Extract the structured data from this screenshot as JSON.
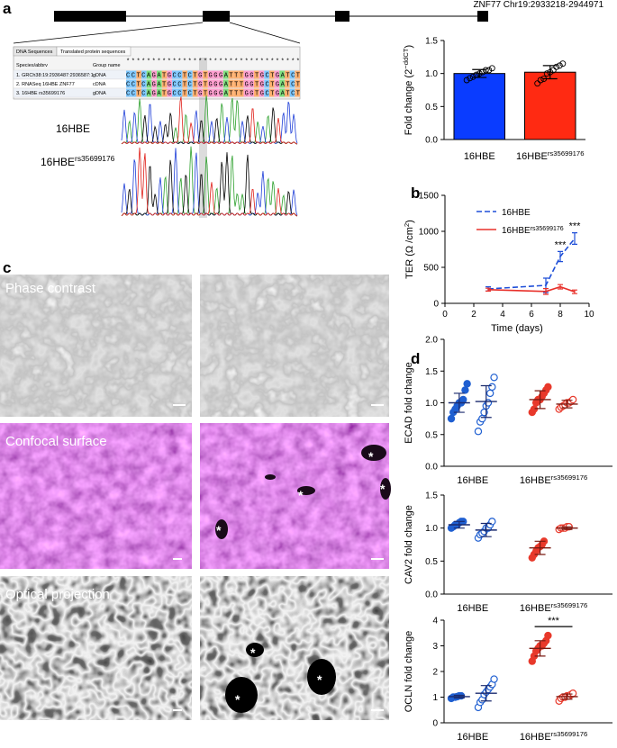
{
  "labels": {
    "a": "a",
    "b": "b",
    "c": "c",
    "d": "d"
  },
  "gene": {
    "label": "ZNF77 Chr19:2933218-2944971"
  },
  "alignment": {
    "tabs": [
      "DNA Sequences",
      "Translated protein sequences"
    ],
    "columns": [
      "Species/abbrv",
      "Group name"
    ],
    "consensus": "**********************************",
    "rows": [
      {
        "name": "1. GRCh38:19:2936487:2936587:1",
        "group": "gDNA",
        "sequence": "CCTCAGATGCCTCTGTGGGATTTGGTGCTGATCT"
      },
      {
        "name": "2. RNASeq 16HBE ZNF77",
        "group": "cDNA",
        "sequence": "CCTCAGATGCCTCTGTGGGATTTGGTGCTGATCT"
      },
      {
        "name": "3. 16HBE rs35699176",
        "group": "gDNA",
        "sequence": "CCTCAGATGCCTCTGTGGGATTTGGTGCTGATCT"
      }
    ]
  },
  "chromatograms": [
    [
      {
        "text": "16HBE"
      }
    ],
    [
      {
        "text": "16HBE"
      },
      {
        "sup": "rs35699176"
      }
    ]
  ],
  "micrographs": {
    "rows": [
      {
        "label": "Phase contrast",
        "asterisks": []
      },
      {
        "label": "Confocal surface",
        "asterisks": [
          "*",
          "*",
          "*",
          "*"
        ]
      },
      {
        "label": "Optical projection",
        "asterisks": [
          "*",
          "*",
          "*"
        ]
      }
    ]
  },
  "chart_data": [
    {
      "type": "bar",
      "ylabel": [
        {
          "text": "Fold change (2"
        },
        {
          "sup": "−ddCT"
        },
        {
          "text": ")"
        }
      ],
      "categories": [
        [
          {
            "text": "16HBE"
          }
        ],
        [
          {
            "text": "16HBE"
          },
          {
            "sup": "rs35699176"
          }
        ]
      ],
      "values": [
        1.0,
        1.02
      ],
      "errors": [
        0.06,
        0.1
      ],
      "colors": [
        "#0a3cff",
        "#ff2a12"
      ],
      "points": [
        [
          0.9,
          0.93,
          0.95,
          0.98,
          1.0,
          1.02,
          1.05,
          1.05,
          1.08
        ],
        [
          0.85,
          0.9,
          0.92,
          1.0,
          1.02,
          1.05,
          1.1,
          1.12,
          1.15
        ]
      ],
      "ylim": [
        0,
        1.5
      ],
      "yticks": [
        {
          "value": 0,
          "label": "0.0"
        },
        0.5,
        {
          "value": 1,
          "label": "1.0"
        },
        1.5
      ]
    },
    {
      "type": "line",
      "ylabel": [
        {
          "text": "TER (Ω /cm"
        },
        {
          "sup": "2"
        },
        {
          "text": ")"
        }
      ],
      "xlabel": "Time (days)",
      "x": [
        3,
        7,
        8,
        9
      ],
      "series": [
        {
          "name": [
            {
              "text": "16HBE"
            }
          ],
          "color": "#1f4fd8",
          "dashed": true,
          "values": [
            200,
            250,
            650,
            900
          ],
          "errors": [
            30,
            100,
            70,
            80
          ],
          "significance": [
            null,
            null,
            "***",
            "***"
          ]
        },
        {
          "name": [
            {
              "text": "16HBE"
            },
            {
              "sup": "rs35699176"
            }
          ],
          "color": "#e8302a",
          "dashed": false,
          "values": [
            190,
            165,
            230,
            160
          ],
          "errors": [
            20,
            40,
            30,
            25
          ]
        }
      ],
      "xlim": [
        0,
        10
      ],
      "xticks": [
        0,
        2,
        4,
        6,
        8,
        10
      ],
      "ylim": [
        0,
        1500
      ],
      "yticks": [
        0,
        500,
        1000,
        1500
      ]
    },
    {
      "type": "dot",
      "ylabel": [
        {
          "text": "ECAD fold change"
        }
      ],
      "categories": [
        [
          {
            "text": "16HBE"
          }
        ],
        [
          {
            "text": "16HBE"
          },
          {
            "sup": "rs35699176"
          }
        ]
      ],
      "groups": [
        {
          "color": "#1f5fd1",
          "filled": true,
          "points": [
            0.75,
            0.85,
            0.9,
            0.95,
            1.0,
            1.0,
            1.05,
            1.2,
            1.3
          ],
          "mean": 1.0,
          "sd": 0.15
        },
        {
          "color": "#1f5fd1",
          "filled": false,
          "points": [
            0.55,
            0.7,
            0.75,
            0.85,
            0.95,
            1.0,
            1.15,
            1.25,
            1.4
          ],
          "mean": 1.02,
          "sd": 0.25
        },
        {
          "color": "#e8392b",
          "filled": true,
          "points": [
            0.85,
            0.9,
            1.0,
            1.05,
            1.05,
            1.1,
            1.15,
            1.2,
            1.25
          ],
          "mean": 1.05,
          "sd": 0.14
        },
        {
          "color": "#e8392b",
          "filled": false,
          "points": [
            0.9,
            0.93,
            0.95,
            0.97,
            1.0,
            1.0,
            1.02,
            1.05
          ],
          "mean": 0.98,
          "sd": 0.06
        }
      ],
      "ylim": [
        0,
        2
      ],
      "yticks": [
        {
          "value": 0,
          "label": "0.0"
        },
        0.5,
        {
          "value": 1,
          "label": "1.0"
        },
        1.5,
        {
          "value": 2,
          "label": "2.0"
        }
      ]
    },
    {
      "type": "dot",
      "ylabel": [
        {
          "text": "CAV2 fold change"
        }
      ],
      "categories": [
        [
          {
            "text": "16HBE"
          }
        ],
        [
          {
            "text": "16HBE"
          },
          {
            "sup": "rs35699176"
          }
        ]
      ],
      "groups": [
        {
          "color": "#1f5fd1",
          "filled": true,
          "points": [
            1.0,
            1.02,
            1.05,
            1.05,
            1.08,
            1.1,
            1.1
          ],
          "mean": 1.05,
          "sd": 0.05
        },
        {
          "color": "#1f5fd1",
          "filled": false,
          "points": [
            0.85,
            0.9,
            0.92,
            0.95,
            1.0,
            1.0,
            1.05,
            1.1
          ],
          "mean": 0.97,
          "sd": 0.1
        },
        {
          "color": "#e8392b",
          "filled": true,
          "points": [
            0.55,
            0.6,
            0.65,
            0.7,
            0.72,
            0.75,
            0.8
          ],
          "mean": 0.7,
          "sd": 0.1
        },
        {
          "color": "#e8392b",
          "filled": false,
          "points": [
            0.98,
            1.0,
            1.0,
            1.0,
            1.02,
            1.02
          ],
          "mean": 1.0,
          "sd": 0.02
        }
      ],
      "ylim": [
        0,
        1.5
      ],
      "yticks": [
        {
          "value": 0,
          "label": "0.0"
        },
        0.5,
        {
          "value": 1,
          "label": "1.0"
        },
        1.5
      ]
    },
    {
      "type": "dot",
      "ylabel": [
        {
          "text": "OCLN fold change"
        }
      ],
      "categories": [
        [
          {
            "text": "16HBE"
          }
        ],
        [
          {
            "text": "16HBE"
          },
          {
            "sup": "rs35699176"
          }
        ]
      ],
      "groups": [
        {
          "color": "#1f5fd1",
          "filled": true,
          "points": [
            0.95,
            1.0,
            1.0,
            1.02,
            1.05,
            1.05
          ],
          "mean": 1.02,
          "sd": 0.05
        },
        {
          "color": "#1f5fd1",
          "filled": false,
          "points": [
            0.6,
            0.8,
            0.9,
            1.1,
            1.2,
            1.3,
            1.4,
            1.5,
            1.7
          ],
          "mean": 1.15,
          "sd": 0.3
        },
        {
          "color": "#e8392b",
          "filled": true,
          "points": [
            2.4,
            2.6,
            2.8,
            2.9,
            3.0,
            3.0,
            3.1,
            3.2,
            3.4
          ],
          "mean": 2.9,
          "sd": 0.3
        },
        {
          "color": "#e8392b",
          "filled": false,
          "points": [
            0.85,
            0.95,
            1.0,
            1.0,
            1.05,
            1.05,
            1.1,
            1.15
          ],
          "mean": 1.02,
          "sd": 0.1
        }
      ],
      "annotation": "***",
      "ylim": [
        0,
        4
      ],
      "yticks": [
        0,
        1,
        2,
        3,
        4
      ]
    }
  ]
}
